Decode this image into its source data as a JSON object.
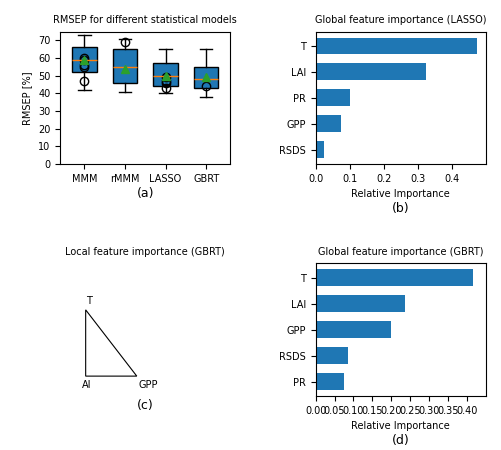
{
  "chart_data": [
    {
      "type": "box",
      "title": "RMSEP for different statistical models",
      "ylabel": "RMSEP [%]",
      "categories": [
        "MMM",
        "rMMM",
        "LASSO",
        "GBRT"
      ],
      "boxes": [
        {
          "med": 59,
          "q1": 52,
          "q3": 66,
          "whislo": 42,
          "whishi": 73,
          "mean": 59,
          "fliers": [
            47,
            55,
            56,
            59,
            60
          ]
        },
        {
          "med": 55,
          "q1": 46,
          "q3": 65,
          "whislo": 41,
          "whishi": 71,
          "mean": 54,
          "fliers": [
            69
          ]
        },
        {
          "med": 50,
          "q1": 44,
          "q3": 57,
          "whislo": 40,
          "whishi": 65,
          "mean": 50,
          "fliers": [
            43,
            46,
            47,
            49
          ]
        },
        {
          "med": 48,
          "q1": 43,
          "q3": 55,
          "whislo": 38,
          "whishi": 65,
          "mean": 49,
          "fliers": [
            44
          ]
        }
      ],
      "ylim": [
        0,
        75
      ],
      "yticks": [
        0,
        10,
        20,
        30,
        40,
        50,
        60,
        70
      ],
      "panel_label": "(a)"
    },
    {
      "type": "bar",
      "orientation": "horizontal",
      "title": "Global feature importance (LASSO)",
      "xlabel": "Relative Importance",
      "categories": [
        "RSDS",
        "GPP",
        "PR",
        "LAI",
        "T"
      ],
      "values": [
        0.025,
        0.075,
        0.1,
        0.325,
        0.475
      ],
      "xlim": [
        0,
        0.5
      ],
      "xticks": [
        0.0,
        0.1,
        0.2,
        0.3,
        0.4
      ],
      "panel_label": "(b)"
    },
    {
      "type": "map",
      "title": "Local feature importance (GBRT)",
      "annotations": [
        "T",
        "AI",
        "GPP"
      ],
      "panel_label": "(c)"
    },
    {
      "type": "bar",
      "orientation": "horizontal",
      "title": "Global feature importance (GBRT)",
      "xlabel": "Relative Importance",
      "categories": [
        "PR",
        "RSDS",
        "GPP",
        "LAI",
        "T"
      ],
      "values": [
        0.075,
        0.085,
        0.2,
        0.235,
        0.415
      ],
      "xlim": [
        0,
        0.45
      ],
      "xticks": [
        {
          "value": 0.0,
          "label": "0.00"
        },
        0.05,
        {
          "value": 0.1,
          "label": "0.10"
        },
        0.15,
        {
          "value": 0.2,
          "label": "0.20"
        },
        0.25,
        {
          "value": 0.3,
          "label": "0.30"
        },
        0.35,
        {
          "value": 0.4,
          "label": "0.40"
        }
      ],
      "panel_label": "(d)"
    }
  ]
}
